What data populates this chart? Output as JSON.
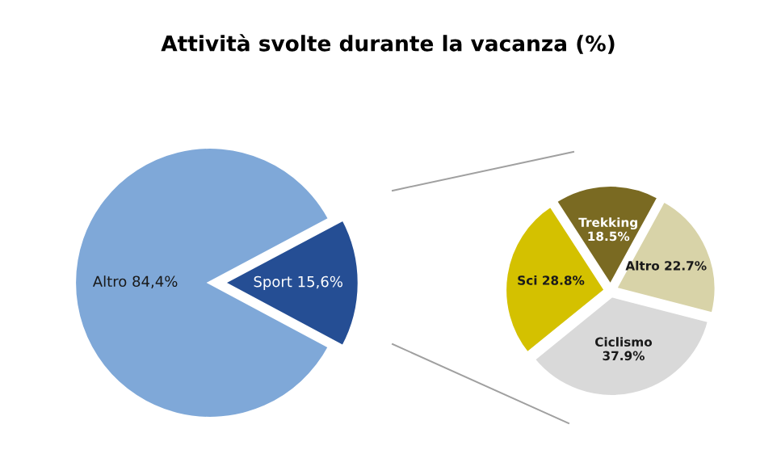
{
  "chart_data": [
    {
      "type": "pie",
      "title": "Attività svolte durante la vacanza (%)",
      "categories": [
        "Altro",
        "Sport"
      ],
      "values": [
        84.4,
        15.6
      ],
      "value_labels": [
        "84,4%",
        "15,6%"
      ],
      "colors": [
        "#7fa8d8",
        "#254e94"
      ]
    },
    {
      "type": "pie",
      "categories": [
        "Trekking",
        "Altro",
        "Ciclismo",
        "Sci"
      ],
      "values": [
        18.5,
        22.7,
        37.9,
        28.8
      ],
      "value_labels": [
        "18.5%",
        "22.7%",
        "37.9%",
        "28.8%"
      ],
      "colors": [
        "#7a6a22",
        "#d8d3a8",
        "#d9d9d9",
        "#d4c100"
      ]
    }
  ]
}
